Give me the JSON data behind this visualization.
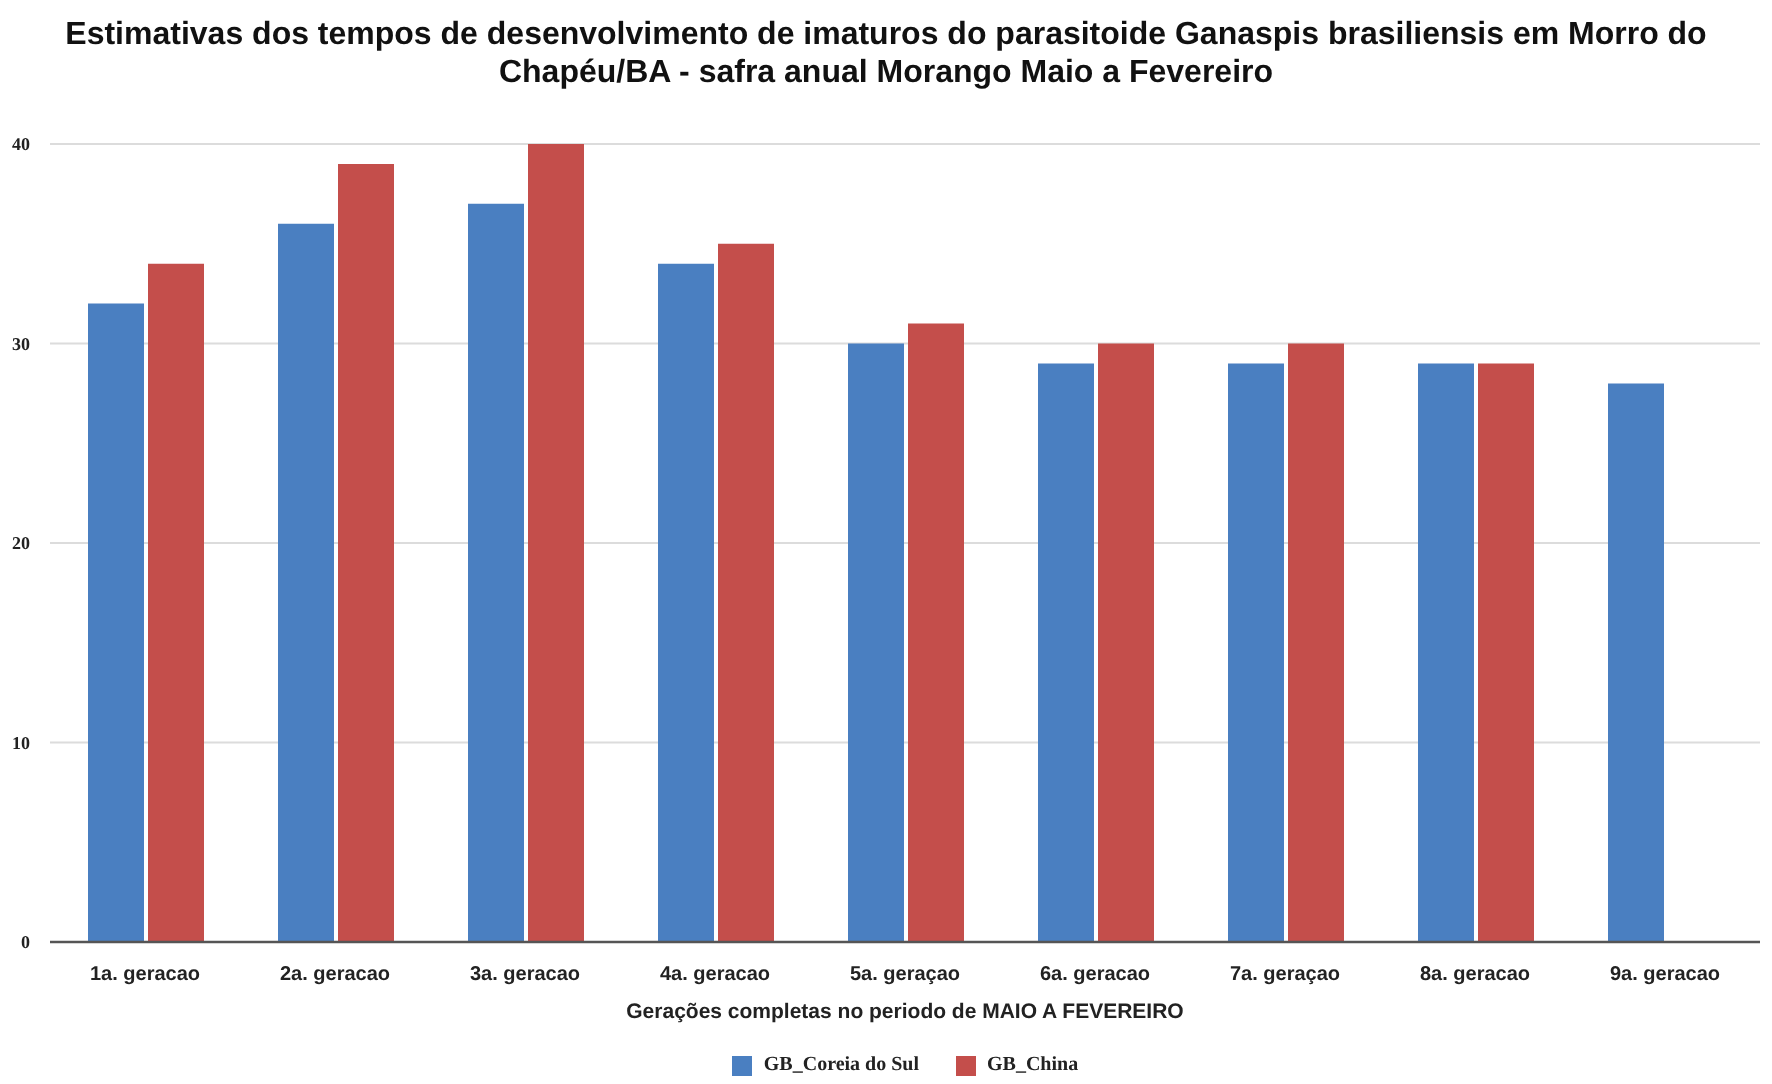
{
  "chart_data": {
    "type": "bar",
    "title": "Estimativas dos tempos de desenvolvimento de imaturos do parasitoide Ganaspis brasiliensis em Morro do Chapéu/BA - safra anual Morango Maio a Fevereiro",
    "xlabel": "Gerações completas no periodo de MAIO A FEVEREIRO",
    "categories": [
      "1a. geracao",
      "2a. geracao",
      "3a. geracao",
      "4a. geracao",
      "5a. geraçao",
      "6a. geracao",
      "7a. geraçao",
      "8a. geracao",
      "9a. geracao"
    ],
    "series": [
      {
        "name": "GB_Coreia do Sul",
        "color": "#4a7fc1",
        "values": [
          32,
          36,
          37,
          34,
          30,
          29,
          29,
          29,
          28
        ]
      },
      {
        "name": "GB_China",
        "color": "#c44e4b",
        "values": [
          34,
          39,
          40,
          35,
          31,
          30,
          30,
          29,
          null
        ]
      }
    ],
    "ylim": [
      0,
      40
    ],
    "yticks": [
      0,
      10,
      20,
      30,
      40
    ],
    "grid": "y",
    "legend": "bottom"
  }
}
